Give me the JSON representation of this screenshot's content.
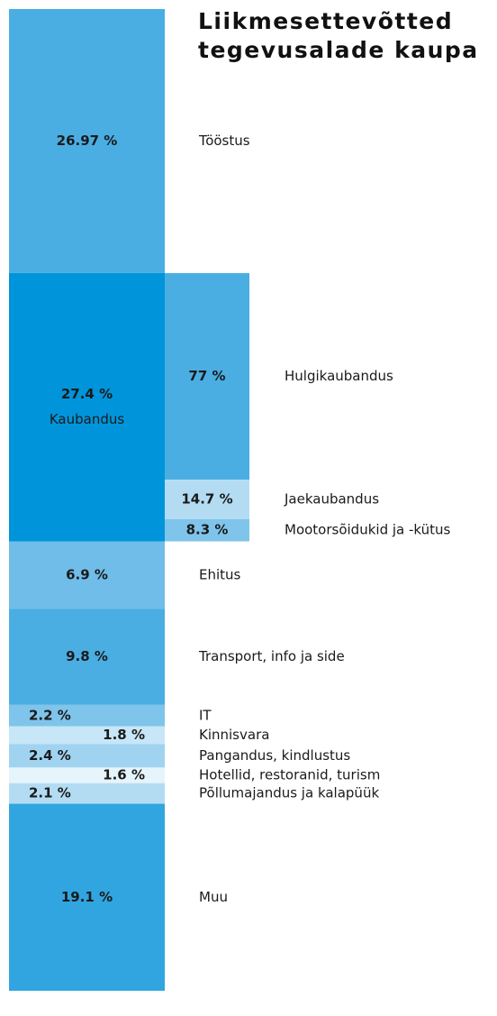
{
  "chart_data": {
    "type": "stacked-column",
    "title": "Liikmesettevõtted tegevusalade kaupa",
    "segments": [
      {
        "name": "Tööstus",
        "value": 26.97,
        "value_label": "26.97 %",
        "color": "#4aaee3"
      },
      {
        "name": "Kaubandus",
        "value": 27.4,
        "value_label": "27.4 %",
        "color": "#0095db",
        "breakdown": [
          {
            "name": "Hulgikaubandus",
            "value": 77,
            "value_label": "77 %",
            "color": "#4aaee3"
          },
          {
            "name": "Jaekaubandus",
            "value": 14.7,
            "value_label": "14.7 %",
            "color": "#b3dcf3"
          },
          {
            "name": "Mootorsõidukid ja -kütus",
            "value": 8.3,
            "value_label": "8.3 %",
            "color": "#7fc4ea"
          }
        ]
      },
      {
        "name": "Ehitus",
        "value": 6.9,
        "value_label": "6.9 %",
        "color": "#6fbde8"
      },
      {
        "name": "Transport, info ja side",
        "value": 9.8,
        "value_label": "9.8 %",
        "color": "#4aaee3"
      },
      {
        "name": "IT",
        "value": 2.2,
        "value_label": "2.2 %",
        "color": "#7fc4ea"
      },
      {
        "name": "Kinnisvara",
        "value": 1.8,
        "value_label": "1.8 %",
        "color": "#c7e6f7"
      },
      {
        "name": "Pangandus, kindlustus",
        "value": 2.4,
        "value_label": "2.4 %",
        "color": "#9fd3f0"
      },
      {
        "name": "Hotellid, restoranid, turism",
        "value": 1.6,
        "value_label": "1.6 %",
        "color": "#e6f4fb"
      },
      {
        "name": "Põllumajandus ja kalapüük",
        "value": 2.1,
        "value_label": "2.1 %",
        "color": "#b3dcf3"
      },
      {
        "name": "Muu",
        "value": 19.1,
        "value_label": "19.1 %",
        "color": "#31a5e0"
      }
    ]
  }
}
